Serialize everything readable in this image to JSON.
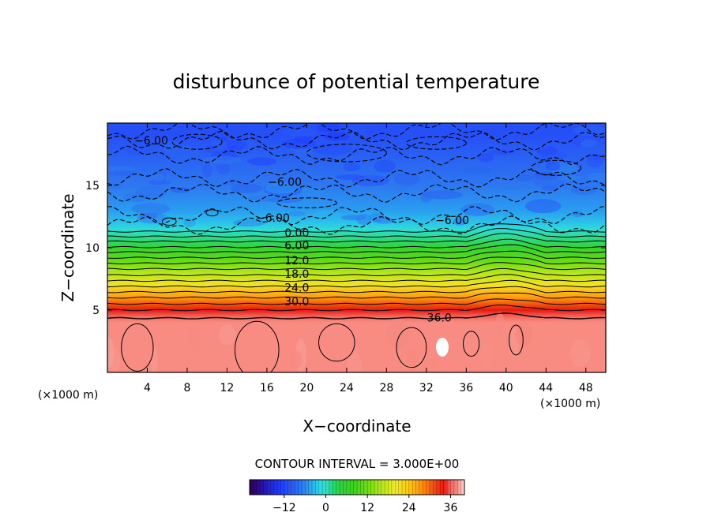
{
  "chart_data": {
    "type": "heatmap",
    "title": "disturbunce of potential temperature",
    "xlabel": "X−coordinate",
    "ylabel": "Z−coordinate",
    "x_unit": "(×1000 m)",
    "xlim": [
      0,
      50
    ],
    "ylim": [
      0,
      20
    ],
    "x_ticks": [
      4,
      8,
      12,
      16,
      20,
      24,
      28,
      32,
      36,
      40,
      44,
      48
    ],
    "x_tick_labels": [
      "4",
      "8",
      "12",
      "16",
      "20",
      "24",
      "28",
      "32",
      "36",
      "40",
      "44",
      "48"
    ],
    "y_ticks": [
      5,
      10,
      15
    ],
    "y_tick_labels": [
      "5",
      "10",
      "15"
    ],
    "contour_interval_text": "CONTOUR INTERVAL = 3.000E+00",
    "contour_interval": 3,
    "contour_labels": [
      "−6.00",
      "−6.00",
      "−6.00",
      "−6.00",
      "0.00",
      "6.00",
      "12.0",
      "18.0",
      "24.0",
      "30.0",
      "36.0"
    ],
    "profile": {
      "z": [
        0,
        1,
        2,
        3,
        4,
        4.5,
        5,
        6,
        7,
        8,
        9,
        10,
        11,
        11.5,
        12,
        13,
        14,
        15,
        16,
        17,
        18,
        19,
        20
      ],
      "value": [
        38,
        38,
        38,
        38,
        38,
        36,
        34,
        27,
        21,
        16,
        11,
        6,
        1,
        -1,
        -3,
        -5,
        -6,
        -7,
        -8,
        -9,
        -10,
        -11,
        -11
      ]
    },
    "colorbar": {
      "range": [
        -22,
        40
      ],
      "ticks": [
        -12,
        0,
        12,
        24,
        36
      ],
      "tick_labels": [
        "−12",
        "0",
        "12",
        "24",
        "36"
      ]
    },
    "colors": {
      "deep_purple": "#30005a",
      "dark_blue": "#1e3cff",
      "blue": "#2f6ff0",
      "cyan": "#2fd9e6",
      "green": "#2fd23a",
      "yellow": "#f4e52a",
      "orange": "#ff8a0a",
      "red": "#e81d10",
      "salmon": "#f88a80"
    },
    "grid": false,
    "legend": "colorbar bottom"
  }
}
